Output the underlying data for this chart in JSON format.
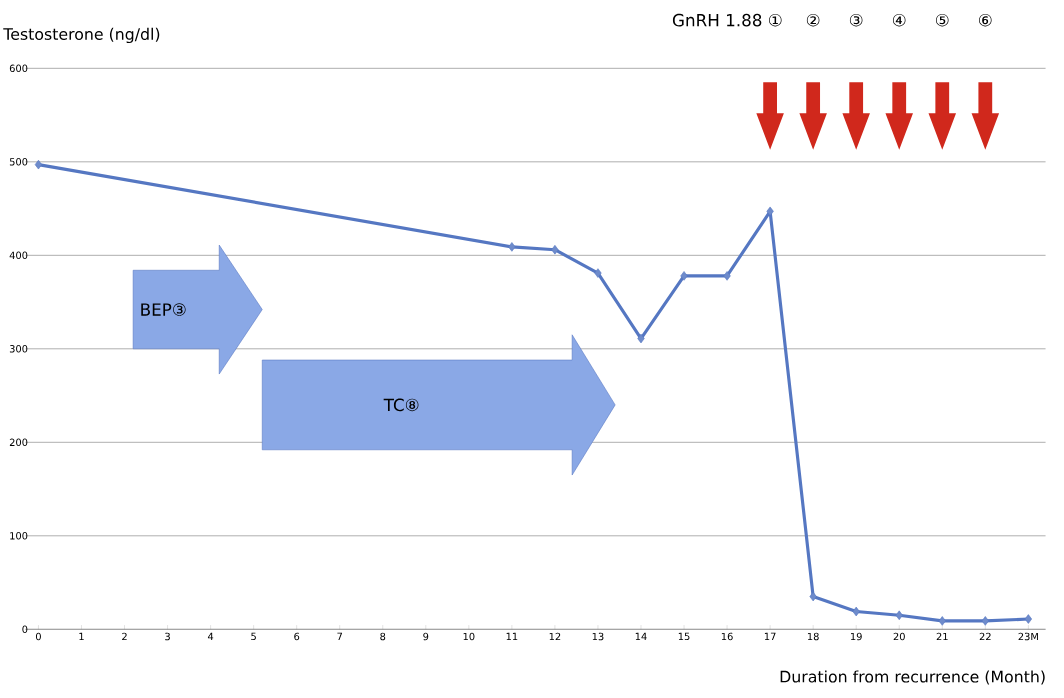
{
  "chart_data": {
    "type": "line",
    "ylabel": "Testosterone (ng/dl)",
    "xlabel": "Duration from recurrence (Month)",
    "categories": [
      "0",
      "1",
      "2",
      "3",
      "4",
      "5",
      "6",
      "7",
      "8",
      "9",
      "10",
      "11",
      "12",
      "13",
      "14",
      "15",
      "16",
      "17",
      "18",
      "19",
      "20",
      "21",
      "22",
      "23M"
    ],
    "series": [
      {
        "color": "#5577c2",
        "values": [
          497,
          null,
          null,
          null,
          null,
          null,
          null,
          null,
          null,
          null,
          null,
          409,
          406,
          381,
          311,
          378,
          378,
          447,
          35,
          19,
          15,
          9,
          9,
          11
        ]
      }
    ],
    "ylim": [
      0,
      600
    ],
    "yticks": [
      0,
      100,
      200,
      300,
      400,
      500,
      600
    ],
    "grid": "y",
    "marker": "diamond",
    "line_style": "solid",
    "annotations": [
      "BEP③",
      "TC⑧",
      "GnRH 1.88 ①",
      "②",
      "③",
      "④",
      "⑤",
      "⑥"
    ]
  }
}
